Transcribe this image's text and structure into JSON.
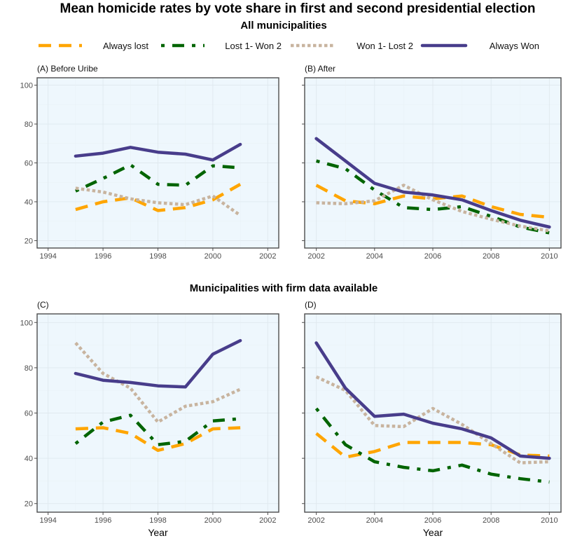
{
  "figure": {
    "title": "Mean homicide rates by vote share in first and second presidential election",
    "subtitle_top": "All municipalities",
    "subtitle_bottom": "Municipalities with firm data available"
  },
  "legend": [
    {
      "label": "Always lost",
      "color": "#FFA500",
      "style": "dashed"
    },
    {
      "label": "Lost 1- Won 2",
      "color": "#006400",
      "style": "dotdash"
    },
    {
      "label": "Won 1- Lost 2",
      "color": "#C8B49F",
      "style": "dotted"
    },
    {
      "label": "Always Won",
      "color": "#483D8B",
      "style": "solid"
    }
  ],
  "chart_data": [
    {
      "type": "line",
      "panel_label": "(A) Before Uribe",
      "xlabel": "",
      "ylabel": "",
      "xlim": [
        1993.6,
        2002.4
      ],
      "ylim": [
        16.2,
        103.8
      ],
      "xticks": [
        1994,
        1996,
        1998,
        2000,
        2002
      ],
      "yticks": [
        20,
        40,
        60,
        80,
        100
      ],
      "x": [
        1995,
        1996,
        1997,
        1998,
        1999,
        2000,
        2001
      ],
      "series": [
        {
          "name": "Always lost",
          "values": [
            36,
            40,
            42,
            35.5,
            37,
            41,
            49
          ]
        },
        {
          "name": "Lost 1- Won 2",
          "values": [
            45.5,
            52,
            59,
            49,
            48.5,
            58.5,
            57.5
          ]
        },
        {
          "name": "Won 1- Lost 2",
          "values": [
            47,
            45,
            41.5,
            39.5,
            38.5,
            43,
            33
          ]
        },
        {
          "name": "Always Won",
          "values": [
            63.5,
            65,
            68,
            65.5,
            64.5,
            61.5,
            69.5
          ]
        }
      ]
    },
    {
      "type": "line",
      "panel_label": "(B) After",
      "xlabel": "",
      "ylabel": "",
      "xlim": [
        2001.6,
        2010.4
      ],
      "ylim": [
        16.2,
        103.8
      ],
      "xticks": [
        2002,
        2004,
        2006,
        2008,
        2010
      ],
      "yticks": [
        20,
        40,
        60,
        80,
        100
      ],
      "x": [
        2002,
        2003,
        2004,
        2005,
        2006,
        2007,
        2008,
        2009,
        2010
      ],
      "series": [
        {
          "name": "Always lost",
          "values": [
            48.5,
            40.5,
            39,
            43,
            41.5,
            43,
            37.5,
            33.5,
            32
          ]
        },
        {
          "name": "Lost 1- Won 2",
          "values": [
            61,
            57,
            46,
            37,
            36,
            37.5,
            32.5,
            27,
            24
          ]
        },
        {
          "name": "Won 1- Lost 2",
          "values": [
            39.5,
            39,
            40.5,
            48.5,
            41,
            35,
            31,
            27.5,
            25
          ]
        },
        {
          "name": "Always Won",
          "values": [
            72.5,
            61,
            49.5,
            45,
            43.5,
            41,
            35.5,
            30.5,
            27
          ]
        }
      ]
    },
    {
      "type": "line",
      "panel_label": "(C)",
      "xlabel": "Year",
      "ylabel": "",
      "xlim": [
        1993.6,
        2002.4
      ],
      "ylim": [
        16.2,
        103.8
      ],
      "xticks": [
        1994,
        1996,
        1998,
        2000,
        2002
      ],
      "yticks": [
        20,
        40,
        60,
        80,
        100
      ],
      "x": [
        1995,
        1996,
        1997,
        1998,
        1999,
        2000,
        2001
      ],
      "series": [
        {
          "name": "Always lost",
          "values": [
            53,
            53.5,
            51,
            43.5,
            46.5,
            53,
            53.5
          ]
        },
        {
          "name": "Lost 1- Won 2",
          "values": [
            46.5,
            56,
            59,
            46,
            47.5,
            56.5,
            57.5
          ]
        },
        {
          "name": "Won 1- Lost 2",
          "values": [
            91,
            77.5,
            71,
            56,
            63,
            65,
            70.5
          ]
        },
        {
          "name": "Always Won",
          "values": [
            77.5,
            74.5,
            73.5,
            72,
            71.5,
            86,
            92
          ]
        }
      ]
    },
    {
      "type": "line",
      "panel_label": "(D)",
      "xlabel": "Year",
      "ylabel": "",
      "xlim": [
        2001.6,
        2010.4
      ],
      "ylim": [
        16.2,
        103.8
      ],
      "xticks": [
        2002,
        2004,
        2006,
        2008,
        2010
      ],
      "yticks": [
        20,
        40,
        60,
        80,
        100
      ],
      "x": [
        2002,
        2003,
        2004,
        2005,
        2006,
        2007,
        2008,
        2009,
        2010
      ],
      "series": [
        {
          "name": "Always lost",
          "values": [
            51,
            40.5,
            43,
            47,
            47,
            47,
            46,
            41.5,
            41
          ]
        },
        {
          "name": "Lost 1- Won 2",
          "values": [
            62,
            46,
            38.5,
            36,
            34.5,
            37,
            33,
            31,
            29.5
          ]
        },
        {
          "name": "Won 1- Lost 2",
          "values": [
            76,
            70,
            54.5,
            54,
            62,
            55,
            46.5,
            38,
            38.5
          ]
        },
        {
          "name": "Always Won",
          "values": [
            91,
            71,
            58.5,
            59.5,
            55.5,
            53,
            49,
            41,
            40
          ]
        }
      ]
    }
  ]
}
